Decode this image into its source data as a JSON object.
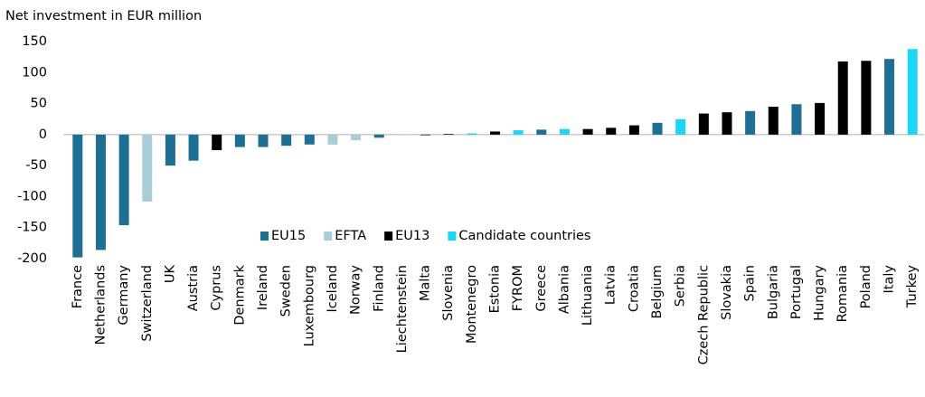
{
  "chart_data": {
    "type": "bar",
    "title": "Net investment in EUR million",
    "categories": [
      "France",
      "Netherlands",
      "Germany",
      "Switzerland",
      "UK",
      "Austria",
      "Cyprus",
      "Denmark",
      "Ireland",
      "Sweden",
      "Luxembourg",
      "Iceland",
      "Norway",
      "Finland",
      "Liechtenstein",
      "Malta",
      "Slovenia",
      "Montenegro",
      "Estonia",
      "FYROM",
      "Greece",
      "Albania",
      "Lithuania",
      "Latvia",
      "Croatia",
      "Belgium",
      "Serbia",
      "Czech Republic",
      "Slovakia",
      "Spain",
      "Bulgaria",
      "Portugal",
      "Hungary",
      "Romania",
      "Poland",
      "Italy",
      "Turkey"
    ],
    "series": [
      {
        "name": "EU15",
        "color": "#1f6e94",
        "values": [
          -198,
          -186,
          -146,
          null,
          -50,
          -42,
          null,
          -20,
          -20,
          -18,
          -16,
          null,
          null,
          -5,
          null,
          null,
          null,
          null,
          null,
          null,
          8,
          null,
          null,
          null,
          null,
          19,
          null,
          null,
          null,
          38,
          null,
          49,
          null,
          null,
          null,
          122,
          null
        ]
      },
      {
        "name": "EFTA",
        "color": "#a9cdd6",
        "values": [
          null,
          null,
          null,
          -108,
          null,
          null,
          null,
          null,
          null,
          null,
          null,
          -16,
          -9,
          null,
          -1,
          null,
          null,
          null,
          null,
          null,
          null,
          null,
          null,
          null,
          null,
          null,
          null,
          null,
          null,
          null,
          null,
          null,
          null,
          null,
          null,
          null,
          null
        ]
      },
      {
        "name": "EU13",
        "color": "#000000",
        "values": [
          null,
          null,
          null,
          null,
          null,
          null,
          -25,
          null,
          null,
          null,
          null,
          null,
          null,
          null,
          null,
          -1,
          1,
          null,
          5,
          null,
          null,
          null,
          9,
          11,
          15,
          null,
          null,
          34,
          36,
          null,
          45,
          null,
          51,
          118,
          119,
          null,
          null
        ]
      },
      {
        "name": "Candidate countries",
        "color": "#1ed5f5",
        "values": [
          null,
          null,
          null,
          null,
          null,
          null,
          null,
          null,
          null,
          null,
          null,
          null,
          null,
          null,
          null,
          null,
          null,
          2,
          null,
          7,
          null,
          9,
          null,
          null,
          null,
          null,
          25,
          null,
          null,
          null,
          null,
          null,
          null,
          null,
          null,
          null,
          138
        ]
      }
    ],
    "ylim": [
      -200,
      150
    ],
    "yticks": [
      150,
      100,
      50,
      0,
      -50,
      -100,
      -150,
      -200
    ],
    "grid": false
  }
}
